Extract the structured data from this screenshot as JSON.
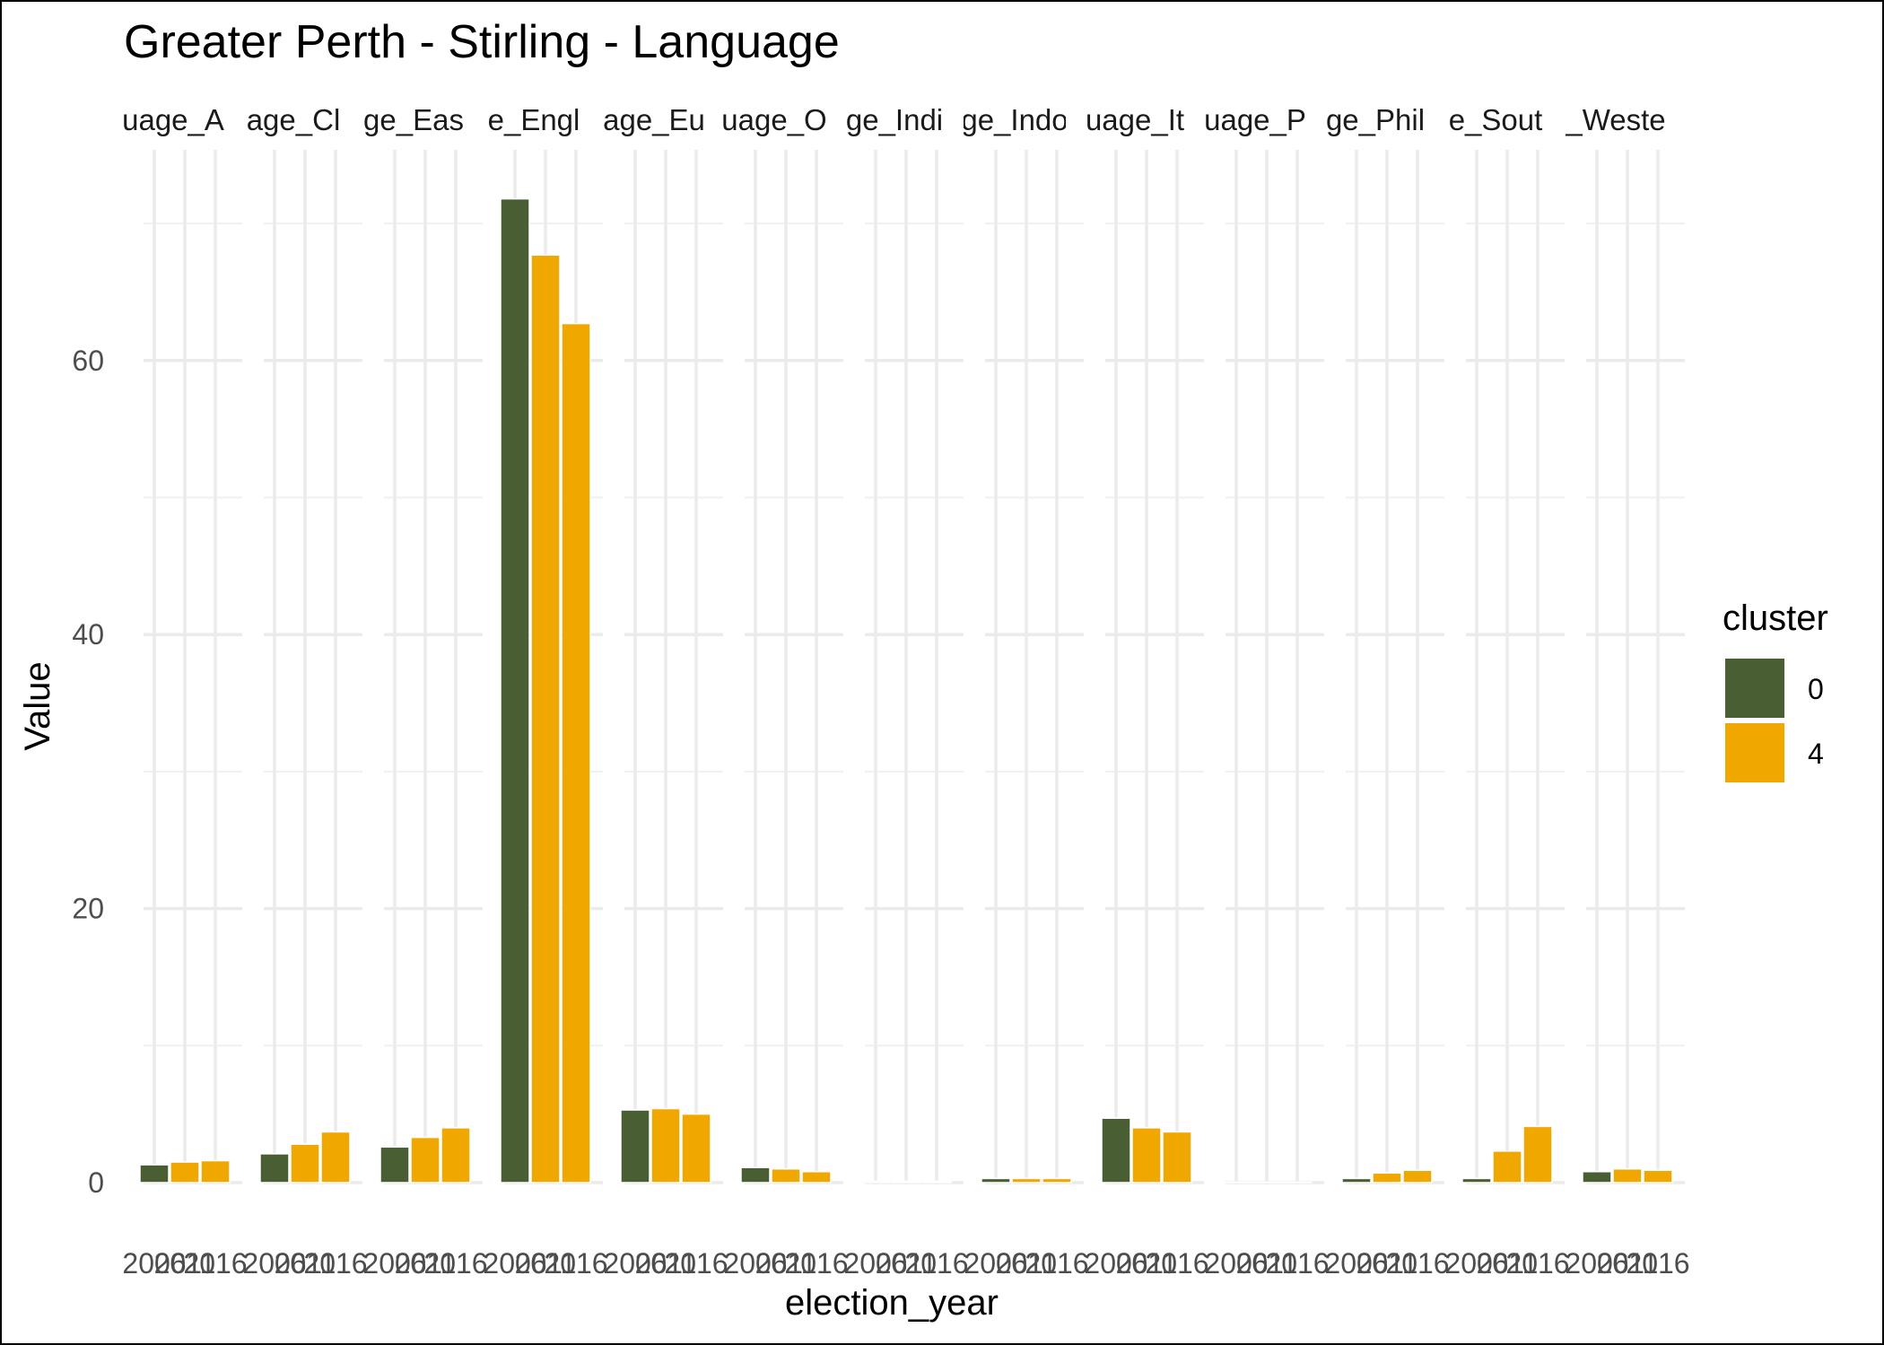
{
  "chart_data": {
    "type": "bar",
    "title": "Greater Perth - Stirling - Language",
    "xlabel": "election_year",
    "ylabel": "Value",
    "ylim": [
      -1.5,
      75
    ],
    "y_ticks": [
      0,
      20,
      40,
      60
    ],
    "grid": true,
    "legend_position": "right",
    "legend_title": "cluster",
    "facets": [
      "Language_A",
      "Language_Cl",
      "Language_Eas",
      "Language_Engl",
      "Language_Eu",
      "Language_O",
      "Language_Indi",
      "Language_Indo",
      "Language_It",
      "Language_P",
      "Language_Phil",
      "Language_Sout",
      "Language_Weste"
    ],
    "facet_labels": [
      "uage_A",
      "age_Cl",
      "ge_Eas",
      "e_Engl",
      "age_Eu",
      "uage_O",
      "ge_Indi",
      "ge_Indo",
      "uage_It",
      "uage_P",
      "ge_Phil",
      "e_Sout",
      "_Weste"
    ],
    "categories": [
      "2006",
      "2011",
      "2016"
    ],
    "category_labels": [
      "2006",
      "2011",
      "2016"
    ],
    "series": [
      {
        "name": "0",
        "color": "#4a5e33"
      },
      {
        "name": "4",
        "color": "#f0a800"
      }
    ],
    "bar_cluster": [
      [
        "0",
        "4",
        "4"
      ],
      [
        "0",
        "4",
        "4"
      ],
      [
        "0",
        "4",
        "4"
      ],
      [
        "0",
        "4",
        "4"
      ],
      [
        "0",
        "4",
        "4"
      ],
      [
        "0",
        "4",
        "4"
      ],
      [
        "0",
        "4",
        "4"
      ],
      [
        "0",
        "4",
        "4"
      ],
      [
        "0",
        "4",
        "4"
      ],
      [
        "0",
        "4",
        "4"
      ],
      [
        "0",
        "4",
        "4"
      ],
      [
        "0",
        "4",
        "4"
      ],
      [
        "0",
        "4",
        "4"
      ]
    ],
    "values": [
      [
        1.3,
        1.5,
        1.6
      ],
      [
        2.1,
        2.8,
        3.7
      ],
      [
        2.6,
        3.3,
        4.0
      ],
      [
        71.8,
        67.7,
        62.7
      ],
      [
        5.3,
        5.4,
        5.0
      ],
      [
        1.1,
        1.0,
        0.8
      ],
      [
        0.1,
        0.1,
        0.1
      ],
      [
        0.3,
        0.3,
        0.3
      ],
      [
        4.7,
        4.0,
        3.7
      ],
      [
        0.0,
        0.0,
        0.0
      ],
      [
        0.3,
        0.7,
        0.9
      ],
      [
        0.3,
        2.3,
        4.1
      ],
      [
        0.8,
        1.0,
        0.9
      ]
    ]
  }
}
